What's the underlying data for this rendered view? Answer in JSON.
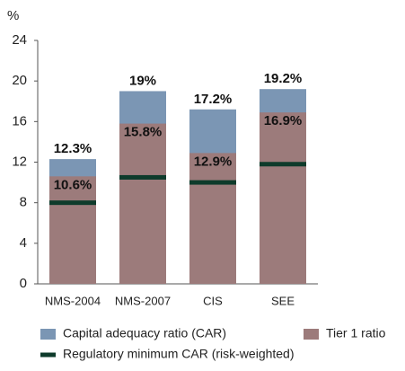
{
  "chart_data": {
    "type": "bar",
    "y_label": "%",
    "categories": [
      "NMS-2004",
      "NMS-2007",
      "CIS",
      "SEE"
    ],
    "series": [
      {
        "name": "Capital adequacy ratio (CAR)",
        "color": "#7b96b4",
        "values": [
          12.3,
          19,
          17.2,
          19.2
        ],
        "value_labels": [
          "12.3%",
          "19%",
          "17.2%",
          "19.2%"
        ]
      },
      {
        "name": "Tier 1 ratio",
        "color": "#9c7b7b",
        "values": [
          10.6,
          15.8,
          12.9,
          16.9
        ],
        "value_labels": [
          "10.6%",
          "15.8%",
          "12.9%",
          "16.9%"
        ]
      },
      {
        "name": "Regulatory minimum CAR (risk-weighted)",
        "color": "#0e3b2b",
        "values": [
          8,
          10.5,
          10,
          11.8
        ],
        "mark": "line"
      }
    ],
    "ylim": [
      0,
      24
    ],
    "yticks": [
      0,
      4,
      8,
      12,
      16,
      20,
      24
    ],
    "grid": false
  }
}
